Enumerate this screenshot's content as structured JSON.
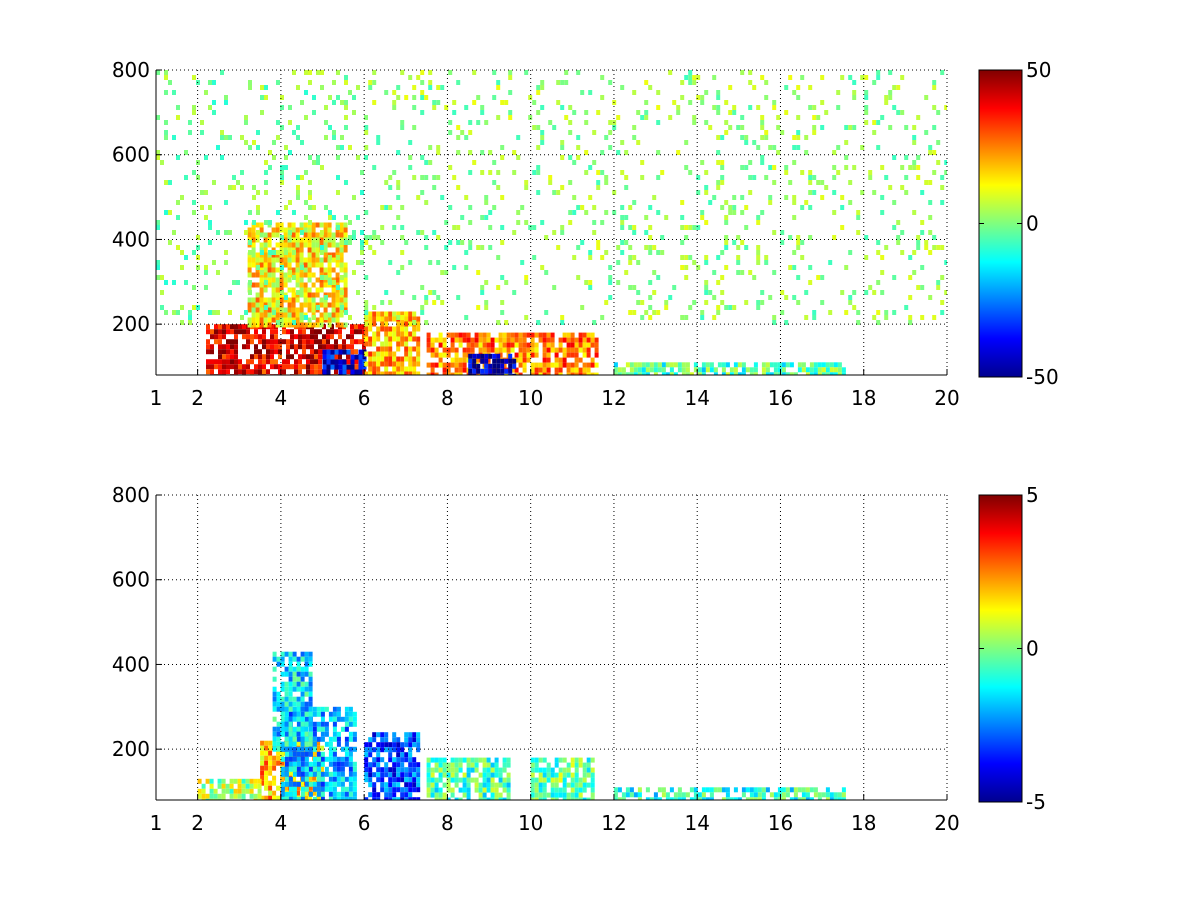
{
  "chart_data": [
    {
      "type": "heatmap",
      "title": "",
      "xlabel": "",
      "ylabel": "",
      "xlim": [
        1,
        20
      ],
      "ylim": [
        80,
        800
      ],
      "xticks": [
        1,
        2,
        4,
        6,
        8,
        10,
        12,
        14,
        16,
        18,
        20
      ],
      "yticks": [
        200,
        400,
        600,
        800
      ],
      "grid": true,
      "colormap": "jet",
      "clim": [
        -50,
        50
      ],
      "colorbar_ticks": [
        -50,
        0,
        50
      ],
      "regions": [
        {
          "x": [
            2.2,
            6.0
          ],
          "y": [
            80,
            200
          ],
          "value": 40,
          "note": "strong positive band"
        },
        {
          "x": [
            3.2,
            5.6
          ],
          "y": [
            200,
            440
          ],
          "value": 15
        },
        {
          "x": [
            5.0,
            6.0
          ],
          "y": [
            80,
            140
          ],
          "value": -40
        },
        {
          "x": [
            6.0,
            7.3
          ],
          "y": [
            80,
            230
          ],
          "value": 20
        },
        {
          "x": [
            7.5,
            11.6
          ],
          "y": [
            80,
            180
          ],
          "value": 25
        },
        {
          "x": [
            8.5,
            9.6
          ],
          "y": [
            80,
            130
          ],
          "value": -45
        },
        {
          "x": [
            12.0,
            17.5
          ],
          "y": [
            80,
            110
          ],
          "value": -5
        },
        {
          "x": [
            1.0,
            6.0
          ],
          "y": [
            200,
            800
          ],
          "value": 0,
          "note": "dense scattered streaks"
        },
        {
          "x": [
            6.0,
            20.0
          ],
          "y": [
            200,
            800
          ],
          "value": 2,
          "note": "sparse scattered speckle"
        }
      ]
    },
    {
      "type": "heatmap",
      "title": "",
      "xlabel": "",
      "ylabel": "",
      "xlim": [
        1,
        20
      ],
      "ylim": [
        80,
        800
      ],
      "xticks": [
        1,
        2,
        4,
        6,
        8,
        10,
        12,
        14,
        16,
        18,
        20
      ],
      "yticks": [
        200,
        400,
        600,
        800
      ],
      "grid": true,
      "colormap": "jet",
      "clim": [
        -5,
        5
      ],
      "colorbar_ticks": [
        -5,
        0,
        5
      ],
      "regions": [
        {
          "x": [
            3.5,
            5.0
          ],
          "y": [
            80,
            220
          ],
          "value": 2
        },
        {
          "x": [
            4.0,
            5.8
          ],
          "y": [
            80,
            300
          ],
          "value": -2
        },
        {
          "x": [
            3.8,
            4.7
          ],
          "y": [
            200,
            430
          ],
          "value": -1.5
        },
        {
          "x": [
            6.0,
            7.3
          ],
          "y": [
            80,
            240
          ],
          "value": -3
        },
        {
          "x": [
            7.5,
            9.5
          ],
          "y": [
            80,
            180
          ],
          "value": -0.5
        },
        {
          "x": [
            10.0,
            11.5
          ],
          "y": [
            80,
            180
          ],
          "value": -0.3
        },
        {
          "x": [
            12.0,
            17.5
          ],
          "y": [
            80,
            110
          ],
          "value": -0.8
        },
        {
          "x": [
            2.0,
            3.5
          ],
          "y": [
            80,
            130
          ],
          "value": 0.5
        }
      ]
    }
  ]
}
